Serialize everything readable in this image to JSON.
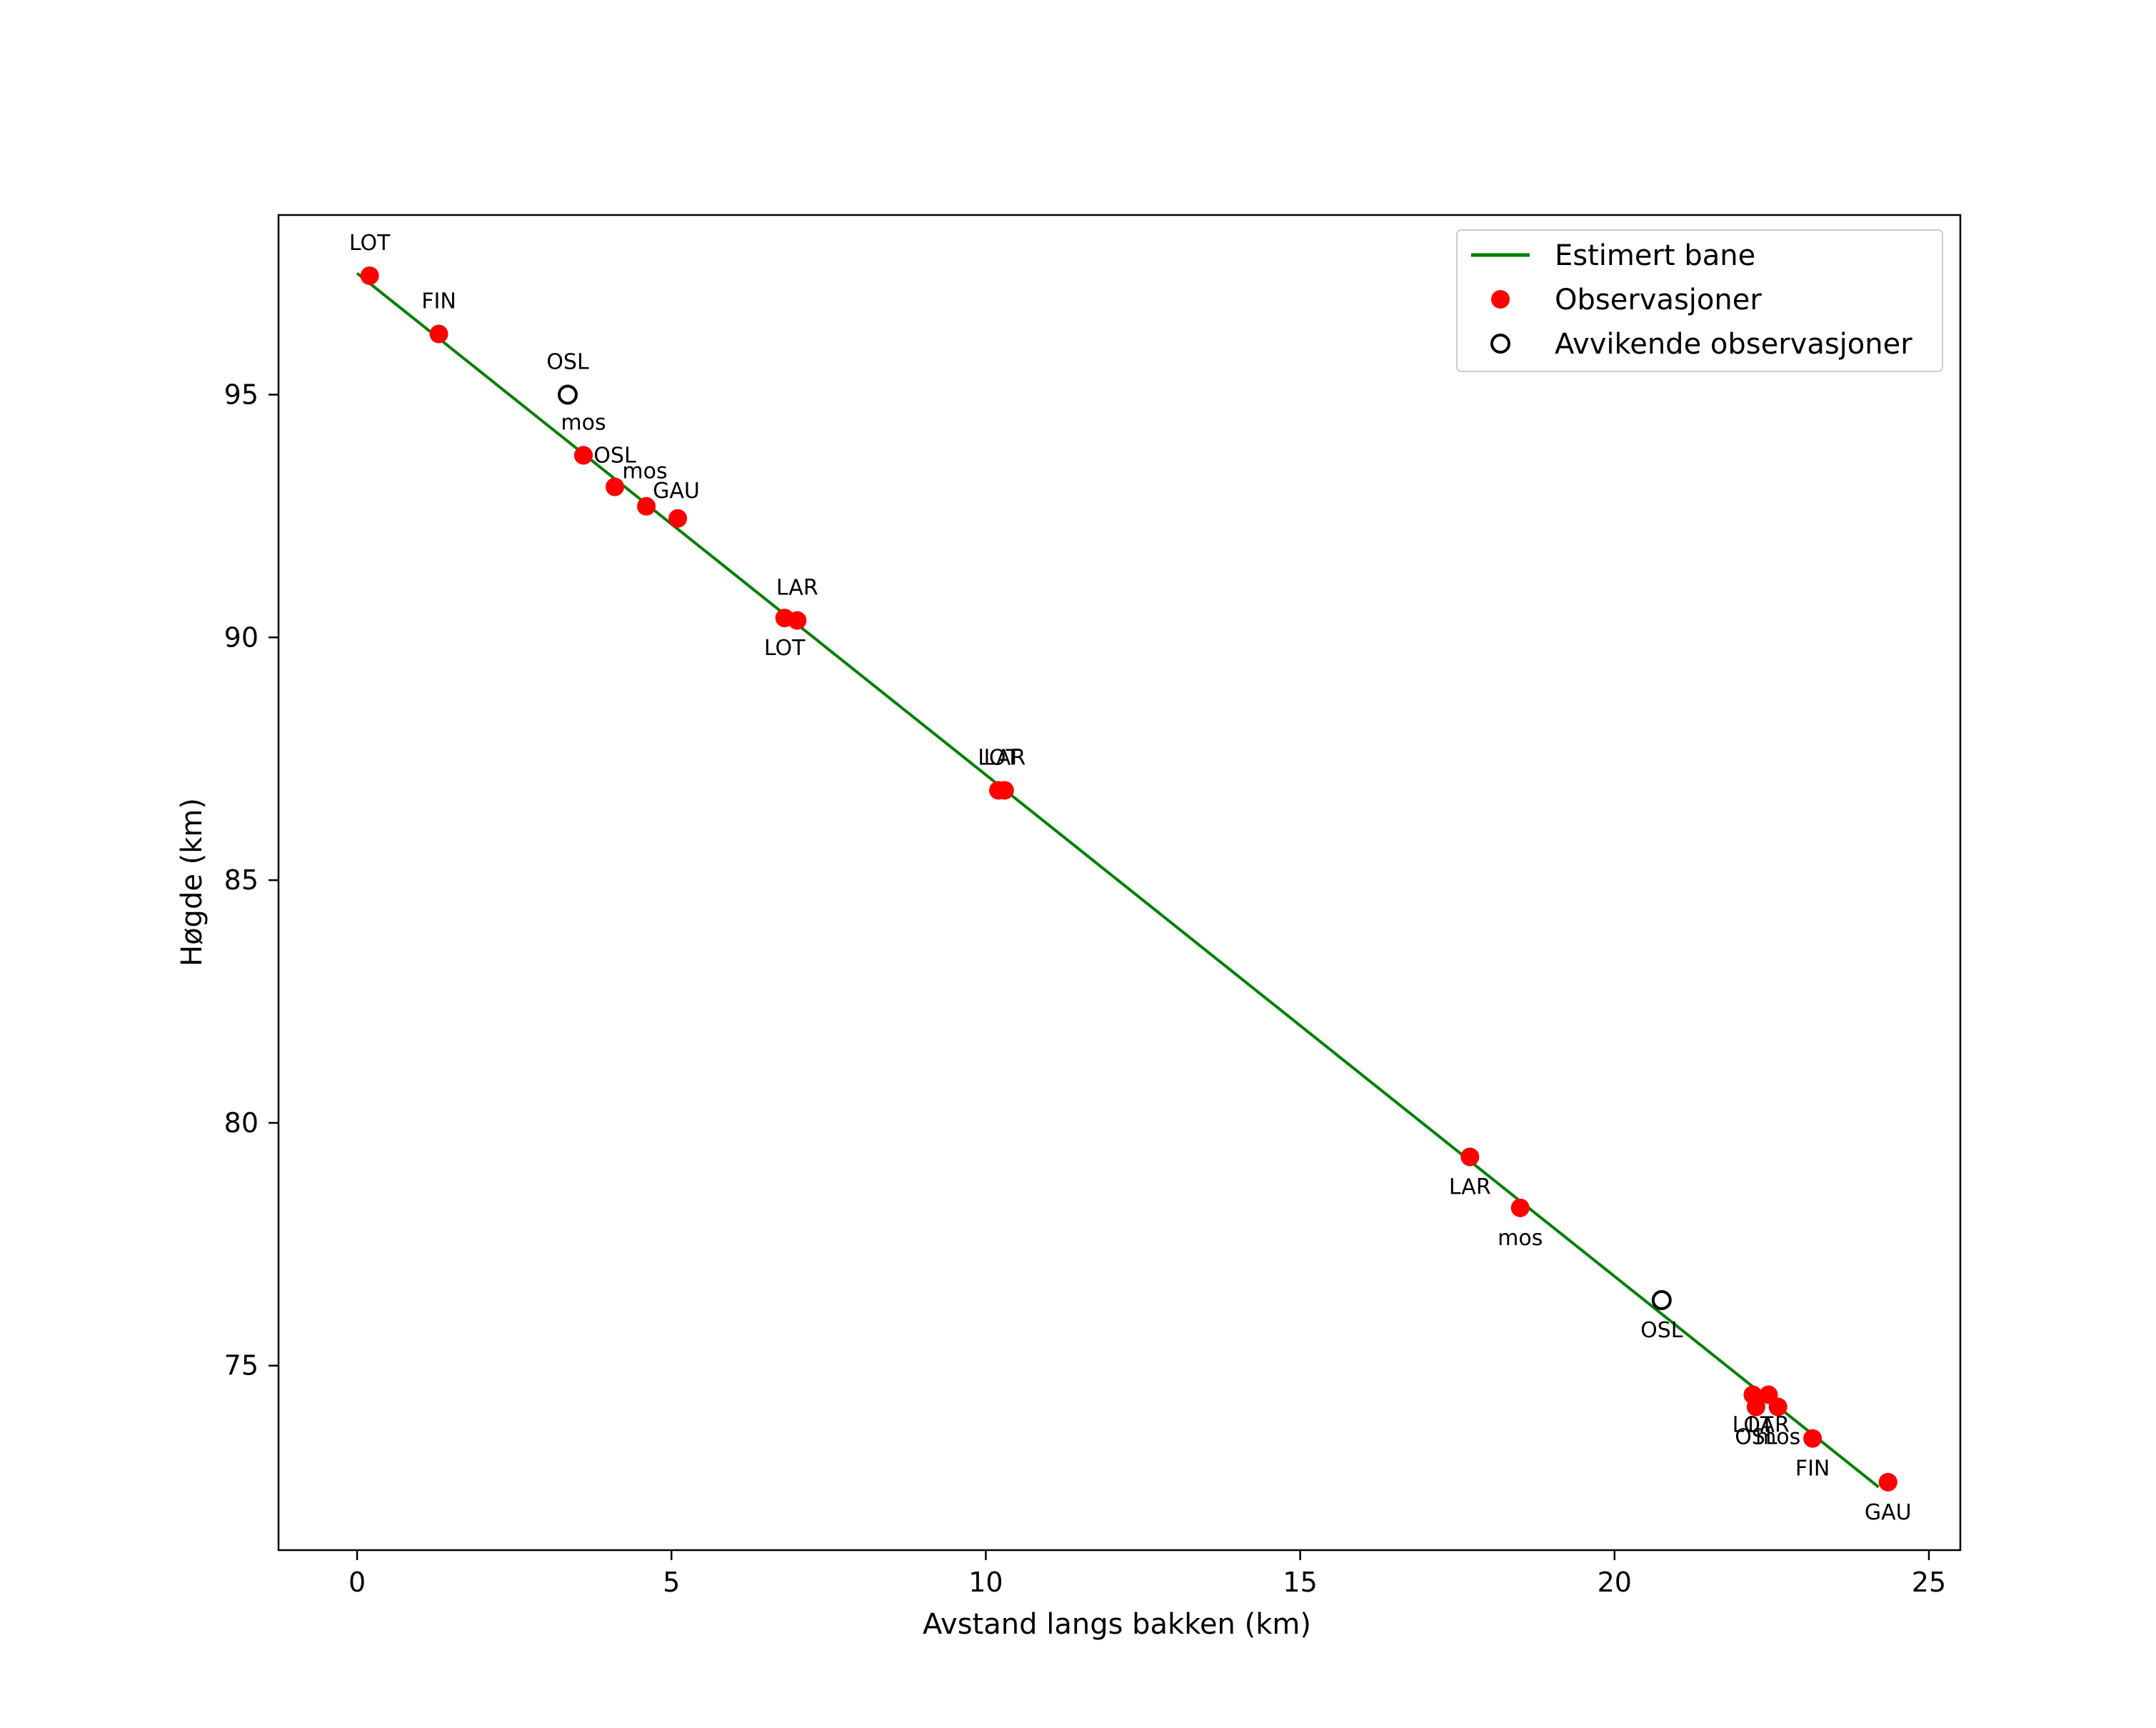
{
  "chart_data": {
    "type": "scatter",
    "title": "",
    "xlabel": "Avstand langs bakken (km)",
    "ylabel": "Høgde (km)",
    "xlim": [
      -1.25,
      25.5
    ],
    "ylim": [
      71.2,
      98.7
    ],
    "xticks": [
      0,
      5,
      10,
      15,
      20,
      25
    ],
    "yticks": [
      75,
      80,
      85,
      90,
      95
    ],
    "grid": false,
    "legend_position": "top-right",
    "colors": {
      "line": "#008000",
      "points": "#ff0000",
      "outliers": "#000000",
      "frame": "#000000"
    },
    "legend": {
      "line": "Estimert bane",
      "points": "Observasjoner",
      "outliers": "Avvikende observasjoner"
    },
    "estimated_path": {
      "name": "Estimert bane",
      "x": [
        0.0,
        24.2
      ],
      "y": [
        97.5,
        72.5
      ]
    },
    "observations": [
      {
        "x": 0.2,
        "y": 97.45,
        "label": "LOT",
        "label_pos": "above"
      },
      {
        "x": 1.3,
        "y": 96.25,
        "label": "FIN",
        "label_pos": "above"
      },
      {
        "x": 3.6,
        "y": 93.75,
        "label": "mos",
        "label_pos": "above-left"
      },
      {
        "x": 3.6,
        "y": 93.75,
        "label": "OSL",
        "label_pos": "right"
      },
      {
        "x": 4.1,
        "y": 93.1,
        "label": "mos",
        "label_pos": "above-right"
      },
      {
        "x": 4.6,
        "y": 92.7,
        "label": "GAU",
        "label_pos": "above-right"
      },
      {
        "x": 5.1,
        "y": 92.45,
        "label": "",
        "label_pos": "none"
      },
      {
        "x": 6.8,
        "y": 90.4,
        "label": "LOT",
        "label_pos": "below"
      },
      {
        "x": 7.0,
        "y": 90.35,
        "label": "LAR",
        "label_pos": "above"
      },
      {
        "x": 10.2,
        "y": 86.85,
        "label": "LOT",
        "label_pos": "above"
      },
      {
        "x": 10.3,
        "y": 86.85,
        "label": "LAR",
        "label_pos": "above"
      },
      {
        "x": 17.7,
        "y": 79.3,
        "label": "LAR",
        "label_pos": "below"
      },
      {
        "x": 18.5,
        "y": 78.25,
        "label": "mos",
        "label_pos": "below"
      },
      {
        "x": 22.2,
        "y": 74.4,
        "label": "LOT",
        "label_pos": "below"
      },
      {
        "x": 22.25,
        "y": 74.15,
        "label": "OSL",
        "label_pos": "below"
      },
      {
        "x": 22.45,
        "y": 74.4,
        "label": "LAR",
        "label_pos": "below"
      },
      {
        "x": 22.6,
        "y": 74.15,
        "label": "mos",
        "label_pos": "below"
      },
      {
        "x": 23.15,
        "y": 73.5,
        "label": "FIN",
        "label_pos": "below"
      },
      {
        "x": 24.35,
        "y": 72.6,
        "label": "GAU",
        "label_pos": "below"
      }
    ],
    "outliers": [
      {
        "x": 3.35,
        "y": 95.0,
        "label": "OSL",
        "label_pos": "above"
      },
      {
        "x": 20.75,
        "y": 76.35,
        "label": "OSL",
        "label_pos": "below"
      }
    ]
  }
}
